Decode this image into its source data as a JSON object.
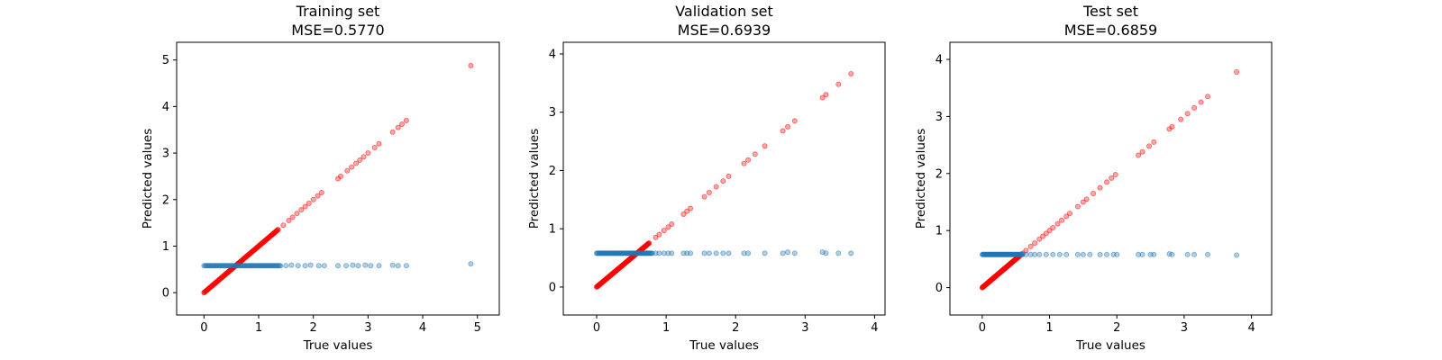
{
  "chart_data": [
    {
      "type": "scatter",
      "title": "Training set",
      "subtitle": "MSE=0.5770",
      "xlabel": "True values",
      "ylabel": "Predicted values",
      "xlim": [
        -0.5,
        5.4
      ],
      "ylim": [
        -0.48,
        5.38
      ],
      "xticks": [
        0,
        1,
        2,
        3,
        4,
        5
      ],
      "yticks": [
        0,
        1,
        2,
        3,
        4,
        5
      ],
      "grid": false,
      "series": [
        {
          "color": "#ff0000",
          "dense_segment": {
            "from": 0.0,
            "to": 1.35
          },
          "x": [
            1.45,
            1.55,
            1.62,
            1.7,
            1.78,
            1.85,
            1.92,
            2.0,
            2.08,
            2.15,
            2.45,
            2.5,
            2.62,
            2.7,
            2.78,
            2.85,
            2.92,
            3.0,
            3.12,
            3.2,
            3.45,
            3.55,
            3.62,
            3.7,
            4.88
          ],
          "y": [
            1.45,
            1.55,
            1.62,
            1.7,
            1.78,
            1.85,
            1.92,
            2.0,
            2.08,
            2.15,
            2.45,
            2.5,
            2.62,
            2.7,
            2.78,
            2.85,
            2.92,
            3.0,
            3.12,
            3.2,
            3.45,
            3.55,
            3.62,
            3.7,
            4.88
          ]
        },
        {
          "color": "#1f77b4",
          "dense_segment": {
            "from": 0.0,
            "to": 1.4,
            "y": 0.58
          },
          "x": [
            1.5,
            1.6,
            1.72,
            1.85,
            1.95,
            2.1,
            2.2,
            2.45,
            2.6,
            2.72,
            2.82,
            2.95,
            3.05,
            3.2,
            3.45,
            3.55,
            3.7,
            4.88
          ],
          "y": [
            0.58,
            0.59,
            0.58,
            0.58,
            0.59,
            0.58,
            0.58,
            0.58,
            0.58,
            0.59,
            0.58,
            0.59,
            0.58,
            0.58,
            0.59,
            0.58,
            0.58,
            0.62
          ]
        }
      ]
    },
    {
      "type": "scatter",
      "title": "Validation set",
      "subtitle": "MSE=0.6939",
      "xlabel": "True values",
      "ylabel": "Predicted values",
      "xlim": [
        -0.48,
        4.15
      ],
      "ylim": [
        -0.48,
        4.2
      ],
      "xticks": [
        0,
        1,
        2,
        3,
        4
      ],
      "yticks": [
        0,
        1,
        2,
        3,
        4
      ],
      "grid": false,
      "series": [
        {
          "color": "#ff0000",
          "dense_segment": {
            "from": 0.0,
            "to": 0.75
          },
          "x": [
            0.85,
            0.9,
            0.97,
            1.03,
            1.08,
            1.25,
            1.3,
            1.35,
            1.55,
            1.62,
            1.72,
            1.82,
            1.9,
            2.12,
            2.18,
            2.28,
            2.42,
            2.68,
            2.75,
            2.85,
            3.25,
            3.3,
            3.48,
            3.66
          ],
          "y": [
            0.85,
            0.9,
            0.97,
            1.03,
            1.08,
            1.25,
            1.3,
            1.35,
            1.55,
            1.62,
            1.72,
            1.82,
            1.9,
            2.12,
            2.18,
            2.28,
            2.42,
            2.68,
            2.75,
            2.85,
            3.25,
            3.3,
            3.48,
            3.66
          ]
        },
        {
          "color": "#1f77b4",
          "dense_segment": {
            "from": 0.0,
            "to": 0.8,
            "y": 0.58
          },
          "x": [
            0.85,
            0.9,
            0.97,
            1.03,
            1.08,
            1.25,
            1.3,
            1.35,
            1.55,
            1.62,
            1.72,
            1.82,
            1.9,
            2.12,
            2.18,
            2.42,
            2.68,
            2.75,
            2.85,
            3.25,
            3.3,
            3.48,
            3.66
          ],
          "y": [
            0.58,
            0.58,
            0.58,
            0.58,
            0.58,
            0.58,
            0.58,
            0.58,
            0.58,
            0.58,
            0.58,
            0.58,
            0.58,
            0.58,
            0.58,
            0.58,
            0.58,
            0.6,
            0.58,
            0.6,
            0.58,
            0.58,
            0.58
          ]
        }
      ]
    },
    {
      "type": "scatter",
      "title": "Test set",
      "subtitle": "MSE=0.6859",
      "xlabel": "True values",
      "ylabel": "Predicted values",
      "xlim": [
        -0.48,
        4.3
      ],
      "ylim": [
        -0.48,
        4.3
      ],
      "xticks": [
        0,
        1,
        2,
        3,
        4
      ],
      "yticks": [
        0,
        1,
        2,
        3,
        4
      ],
      "grid": false,
      "series": [
        {
          "color": "#ff0000",
          "dense_segment": {
            "from": 0.0,
            "to": 0.55
          },
          "x": [
            0.6,
            0.65,
            0.72,
            0.78,
            0.85,
            0.9,
            0.95,
            1.0,
            1.05,
            1.12,
            1.18,
            1.25,
            1.3,
            1.42,
            1.5,
            1.55,
            1.65,
            1.75,
            1.85,
            1.92,
            1.98,
            2.32,
            2.38,
            2.48,
            2.55,
            2.78,
            2.82,
            2.95,
            3.05,
            3.15,
            3.25,
            3.35,
            3.78
          ],
          "y": [
            0.6,
            0.65,
            0.72,
            0.78,
            0.85,
            0.9,
            0.95,
            1.0,
            1.05,
            1.12,
            1.18,
            1.25,
            1.3,
            1.42,
            1.5,
            1.55,
            1.65,
            1.75,
            1.85,
            1.92,
            1.98,
            2.32,
            2.38,
            2.48,
            2.55,
            2.78,
            2.82,
            2.95,
            3.05,
            3.15,
            3.25,
            3.35,
            3.78
          ]
        },
        {
          "color": "#1f77b4",
          "dense_segment": {
            "from": 0.0,
            "to": 0.6,
            "y": 0.58
          },
          "x": [
            0.65,
            0.72,
            0.78,
            0.85,
            0.95,
            1.05,
            1.15,
            1.25,
            1.42,
            1.5,
            1.6,
            1.75,
            1.85,
            1.95,
            2.0,
            2.32,
            2.38,
            2.5,
            2.55,
            2.78,
            2.82,
            3.05,
            3.15,
            3.35,
            3.78
          ],
          "y": [
            0.58,
            0.58,
            0.58,
            0.58,
            0.58,
            0.58,
            0.58,
            0.58,
            0.58,
            0.58,
            0.58,
            0.58,
            0.58,
            0.58,
            0.58,
            0.58,
            0.58,
            0.58,
            0.58,
            0.59,
            0.58,
            0.58,
            0.58,
            0.58,
            0.57
          ]
        }
      ]
    }
  ]
}
